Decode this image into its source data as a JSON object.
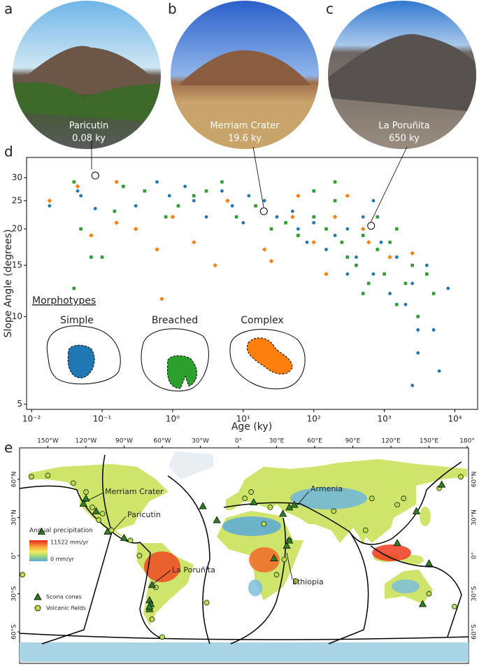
{
  "panels": [
    {
      "letter": "a",
      "name": "Paricutin",
      "age_label": "0.08 ky"
    },
    {
      "letter": "b",
      "name": "Merriam Crater",
      "age_label": "19.6 ky"
    },
    {
      "letter": "c",
      "name": "La Poruñita",
      "age_label": "650 ky"
    }
  ],
  "chart_data": {
    "type": "scatter",
    "letter": "d",
    "x_label": "Age (ky)",
    "y_label": "Slope Angle (degrees)",
    "x_log": true,
    "y_log": true,
    "xlim": [
      0.0085,
      21000
    ],
    "ylim": [
      4.8,
      35.2
    ],
    "xticks": [
      {
        "value": 0.01,
        "label": "10⁻²"
      },
      {
        "value": 0.1,
        "label": "10⁻¹"
      },
      {
        "value": 1,
        "label": "10⁰"
      },
      {
        "value": 10,
        "label": "10¹"
      },
      {
        "value": 100,
        "label": "10²"
      },
      {
        "value": 1000,
        "label": "10³"
      },
      {
        "value": 10000,
        "label": "10⁴"
      }
    ],
    "yticks": [
      5,
      10,
      15,
      20,
      25,
      30
    ],
    "legend_title": "Morphotypes",
    "series": [
      {
        "name": "Simple",
        "color": "#1f77b4",
        "marker": "circle",
        "x": [
          0.018,
          0.045,
          0.05,
          0.08,
          0.3,
          0.6,
          0.9,
          1.5,
          2,
          3,
          5,
          7,
          10,
          12,
          20,
          30,
          50,
          80,
          100,
          150,
          200,
          300,
          400,
          500,
          700,
          900,
          1200,
          1500,
          2000,
          2500,
          3000,
          4000,
          5000,
          6000,
          8000,
          2500,
          3000,
          300,
          60,
          700
        ],
        "values": [
          24,
          27,
          26,
          23.5,
          24,
          29,
          26,
          28,
          25,
          22,
          27,
          24,
          21,
          26,
          25,
          22,
          23,
          18,
          21,
          17,
          19,
          20,
          16,
          22,
          14,
          18,
          12,
          16,
          11,
          13,
          9,
          15,
          9,
          6.5,
          12.5,
          5.8,
          7.5,
          14,
          20,
          25
        ]
      },
      {
        "name": "Breached",
        "color": "#2ca02c",
        "marker": "square",
        "x": [
          0.04,
          0.04,
          0.05,
          0.07,
          0.1,
          0.15,
          0.2,
          0.4,
          0.8,
          1.2,
          2,
          3,
          5,
          8,
          15,
          25,
          40,
          60,
          100,
          150,
          200,
          250,
          300,
          400,
          500,
          600,
          800,
          1000,
          1200,
          1500,
          2000,
          2500,
          3000,
          4000,
          5000,
          200,
          100,
          500,
          800,
          1500
        ],
        "values": [
          12.5,
          29,
          20,
          16,
          16,
          23,
          28,
          27,
          22,
          24,
          26,
          27,
          29,
          22,
          24,
          20,
          21,
          19,
          22,
          20,
          25,
          18,
          16,
          15,
          19,
          13,
          17,
          14,
          18,
          11,
          13,
          15,
          10,
          14,
          12,
          29,
          27,
          12,
          22,
          20
        ]
      },
      {
        "name": "Complex",
        "color": "#ff7f0e",
        "marker": "diamond",
        "x": [
          0.018,
          0.045,
          0.07,
          0.16,
          0.16,
          0.3,
          0.6,
          0.7,
          1,
          2,
          4,
          6,
          20,
          25,
          50,
          100,
          150,
          200,
          300,
          600,
          1200,
          2500,
          60,
          500
        ],
        "values": [
          25,
          28,
          19,
          29,
          21,
          20,
          17,
          11.5,
          22,
          18,
          15,
          25,
          17,
          15.5,
          22,
          18,
          14,
          22,
          26,
          18,
          16,
          16.5,
          26,
          20
        ]
      }
    ],
    "highlights": {
      "x": [
        0.08,
        19.6,
        650
      ],
      "values": [
        30.5,
        23,
        20.5
      ]
    }
  },
  "map": {
    "letter": "e",
    "xlim": [
      -172,
      181
    ],
    "ylim": [
      -85,
      85
    ],
    "xticks": [
      {
        "value": -150,
        "label": "150°W"
      },
      {
        "value": -120,
        "label": "120°W"
      },
      {
        "value": -90,
        "label": "90°W"
      },
      {
        "value": -60,
        "label": "60°W"
      },
      {
        "value": -30,
        "label": "30°W"
      },
      {
        "value": 0,
        "label": "0°"
      },
      {
        "value": 30,
        "label": "30°E"
      },
      {
        "value": 60,
        "label": "60°E"
      },
      {
        "value": 90,
        "label": "90°E"
      },
      {
        "value": 120,
        "label": "120°E"
      },
      {
        "value": 150,
        "label": "150°E"
      },
      {
        "value": 180,
        "label": "180°"
      }
    ],
    "yticks": [
      {
        "value": 60,
        "label": "60°N"
      },
      {
        "value": 30,
        "label": "30°N"
      },
      {
        "value": 0,
        "label": "0°"
      },
      {
        "value": -30,
        "label": "30°S"
      },
      {
        "value": -60,
        "label": "60°S"
      }
    ],
    "precip_title": "Annual precipitation",
    "precip_max": "11522 mm/yr",
    "precip_min": "0 mm/yr",
    "places": [
      "Merriam Crater",
      "Paricutin",
      "La Poruñita",
      "Armenia",
      "Ethiopia"
    ],
    "scoria_cones": {
      "name": "Scoria cones",
      "color": "#2e7d1e",
      "lon": [
        -112,
        -103,
        -120,
        -122,
        -90,
        -68,
        -70,
        -69,
        -70,
        -155,
        44,
        40,
        38,
        40,
        28,
        -17,
        12,
        35,
        145,
        150,
        125,
        140,
        160,
        -28,
        -70
      ],
      "lat": [
        35,
        19,
        45,
        41,
        14,
        -23,
        -35,
        -38,
        -42,
        19,
        40,
        38,
        8,
        12,
        -2,
        28,
        42,
        33,
        -38,
        -6,
        10,
        35,
        56,
        39,
        -40
      ]
    },
    "volcanic_fields": {
      "name": "Volcanic fields",
      "color": "#b5e04a",
      "lon": [
        -150,
        -163,
        -130,
        -120,
        -115,
        -107,
        -100,
        -110,
        -85,
        -78,
        -65,
        -68,
        5,
        10,
        25,
        40,
        36,
        30,
        45,
        20,
        75,
        105,
        125,
        130,
        158,
        170,
        -25,
        -60,
        -170,
        100,
        150,
        175
      ],
      "lat": [
        63,
        62,
        57,
        50,
        38,
        33,
        20,
        28,
        12,
        0,
        -25,
        -50,
        45,
        50,
        38,
        12,
        -3,
        -15,
        -20,
        25,
        35,
        45,
        40,
        45,
        53,
        -40,
        -37,
        -64,
        -15,
        20,
        -30,
        62
      ]
    }
  }
}
